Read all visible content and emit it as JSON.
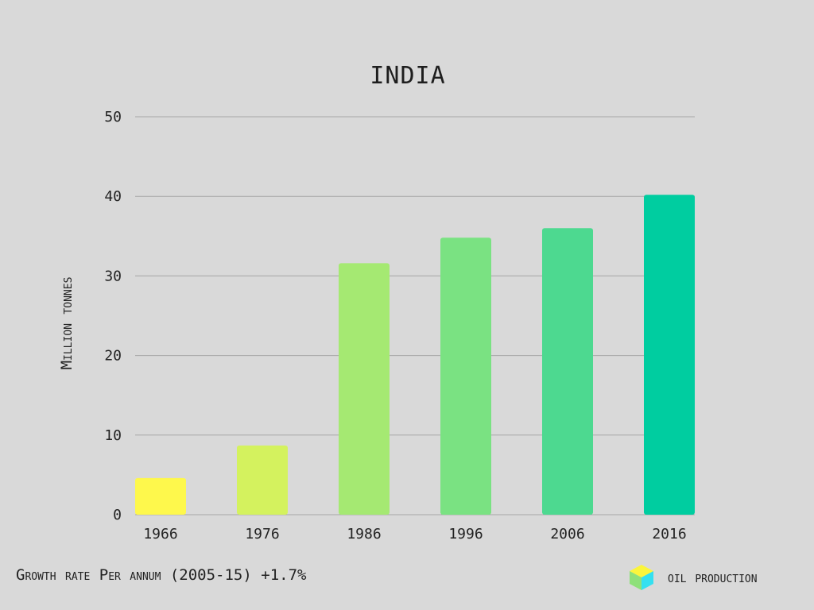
{
  "colors": {
    "background": "#d9d9d9",
    "grid": "#a6a6a6",
    "bars": [
      "#fef84c",
      "#d4f25e",
      "#a5e972",
      "#7ae282",
      "#4dd990",
      "#00cda0"
    ]
  },
  "footer": {
    "note": "Growth rate Per annum (2005-15) +1.7%",
    "brand_label": "oil production",
    "brand_icon": "cube-icon"
  },
  "chart_data": {
    "type": "bar",
    "title": "INDIA",
    "xlabel": "",
    "ylabel": "Million tonnes",
    "categories": [
      "1966",
      "1976",
      "1986",
      "1996",
      "2006",
      "2016"
    ],
    "values": [
      4.6,
      8.7,
      31.6,
      34.8,
      36.0,
      40.2
    ],
    "ylim": [
      0,
      50
    ],
    "yticks": [
      "0",
      "10",
      "20",
      "30",
      "40",
      "50"
    ],
    "grid": true,
    "legend": "none"
  }
}
